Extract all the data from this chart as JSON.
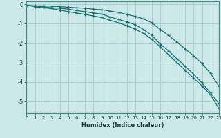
{
  "xlabel": "Humidex (Indice chaleur)",
  "bg_color": "#cce8e8",
  "grid_color": "#aacece",
  "line_color": "#1a6e6e",
  "xlim": [
    0,
    23
  ],
  "ylim": [
    -5.6,
    0.15
  ],
  "yticks": [
    0,
    -1,
    -2,
    -3,
    -4,
    -5
  ],
  "xticks": [
    0,
    1,
    2,
    3,
    4,
    5,
    6,
    7,
    8,
    9,
    10,
    11,
    12,
    13,
    14,
    15,
    16,
    17,
    18,
    19,
    20,
    21,
    22,
    23
  ],
  "line1_x": [
    0,
    1,
    2,
    3,
    4,
    5,
    6,
    7,
    8,
    9,
    10,
    11,
    12,
    13,
    14,
    15,
    16,
    17,
    18,
    19,
    20,
    21,
    22,
    23
  ],
  "line1_y": [
    -0.05,
    -0.08,
    -0.08,
    -0.1,
    -0.12,
    -0.15,
    -0.18,
    -0.2,
    -0.25,
    -0.28,
    -0.35,
    -0.42,
    -0.52,
    -0.62,
    -0.75,
    -0.95,
    -1.3,
    -1.6,
    -1.95,
    -2.3,
    -2.65,
    -3.05,
    -3.55,
    -4.2
  ],
  "line2_x": [
    0,
    1,
    2,
    3,
    4,
    5,
    6,
    7,
    8,
    9,
    10,
    11,
    12,
    13,
    14,
    15,
    16,
    17,
    18,
    19,
    20,
    21,
    22,
    23
  ],
  "line2_y": [
    -0.05,
    -0.1,
    -0.12,
    -0.18,
    -0.2,
    -0.25,
    -0.32,
    -0.38,
    -0.45,
    -0.5,
    -0.65,
    -0.78,
    -0.9,
    -1.05,
    -1.3,
    -1.6,
    -2.05,
    -2.4,
    -2.8,
    -3.2,
    -3.6,
    -4.05,
    -4.55,
    -5.1
  ],
  "line3_x": [
    0,
    1,
    2,
    3,
    4,
    5,
    6,
    7,
    8,
    9,
    10,
    11,
    12,
    13,
    14,
    15,
    16,
    17,
    18,
    19,
    20,
    21,
    22,
    23
  ],
  "line3_y": [
    -0.05,
    -0.12,
    -0.18,
    -0.22,
    -0.3,
    -0.38,
    -0.45,
    -0.52,
    -0.6,
    -0.68,
    -0.82,
    -0.95,
    -1.1,
    -1.28,
    -1.5,
    -1.8,
    -2.2,
    -2.6,
    -3.0,
    -3.4,
    -3.8,
    -4.2,
    -4.65,
    -5.35
  ]
}
